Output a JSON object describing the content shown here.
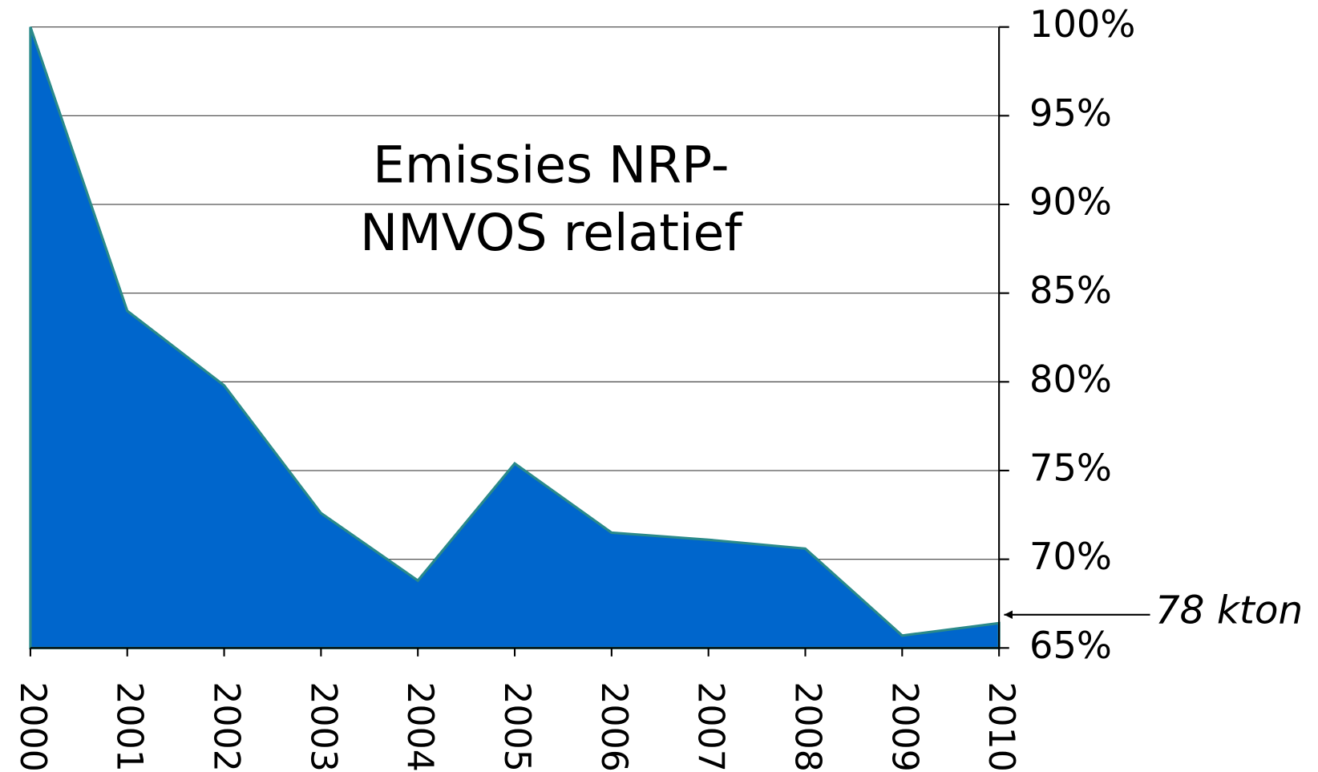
{
  "chart_data": {
    "type": "area",
    "title": [
      "Emissies NRP-",
      "NMVOS relatief"
    ],
    "categories": [
      "2000",
      "2001",
      "2002",
      "2003",
      "2004",
      "2005",
      "2006",
      "2007",
      "2008",
      "2009",
      "2010"
    ],
    "series": [
      {
        "color": "#0066cc",
        "values": [
          100,
          84.0,
          79.8,
          72.6,
          68.8,
          75.4,
          71.5,
          71.1,
          70.6,
          65.7,
          66.4
        ]
      }
    ],
    "ylim": [
      65,
      100
    ],
    "yticks": [
      {
        "value": 65,
        "label": "65%"
      },
      {
        "value": 70,
        "label": "70%"
      },
      {
        "value": 75,
        "label": "75%"
      },
      {
        "value": 80,
        "label": "80%"
      },
      {
        "value": 85,
        "label": "85%"
      },
      {
        "value": 90,
        "label": "90%"
      },
      {
        "value": 95,
        "label": "95%"
      },
      {
        "value": 100,
        "label": "100%"
      }
    ],
    "grid": true,
    "annotations": [
      {
        "text": "78 kton",
        "category": 10
      }
    ]
  }
}
